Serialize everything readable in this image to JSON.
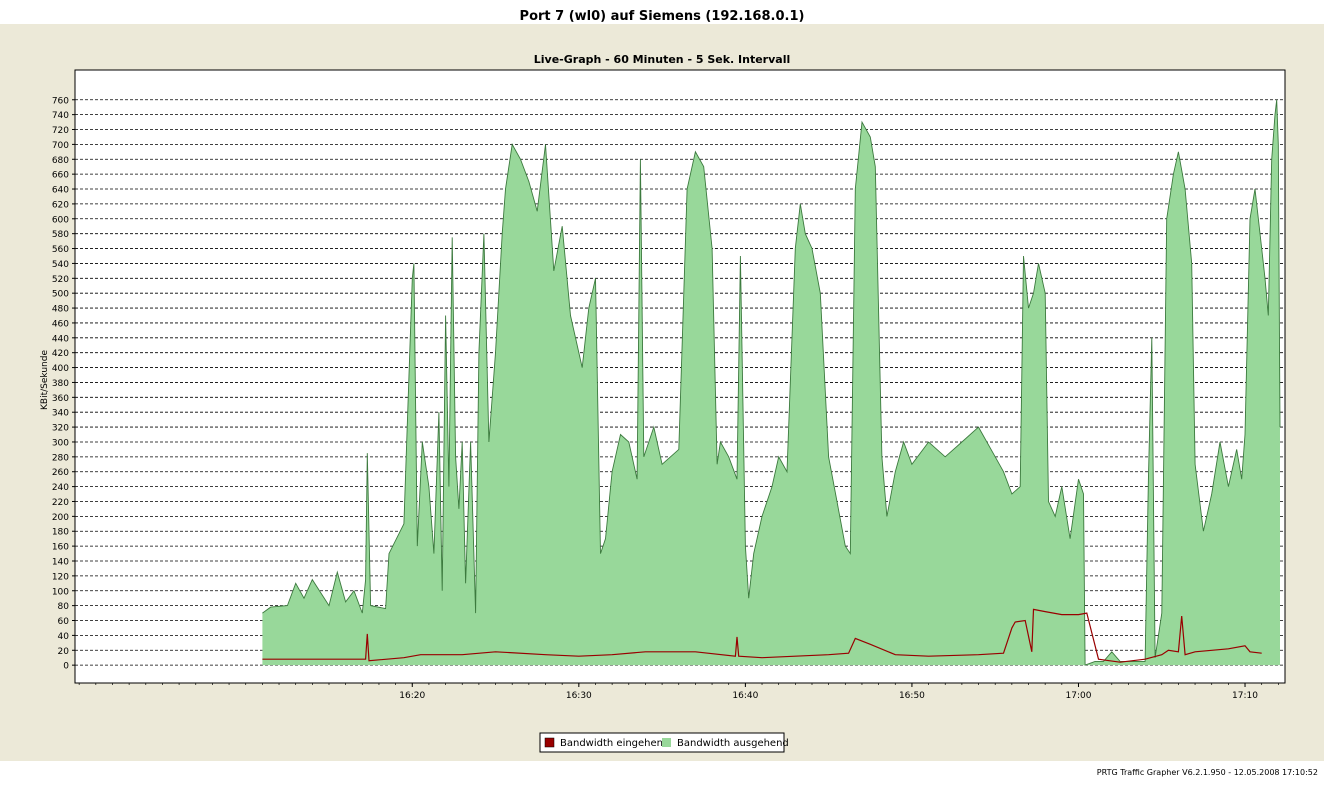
{
  "window_title": "Port 7 (wl0) auf Siemens (192.168.0.1)",
  "footer": "PRTG Traffic Grapher V6.2.1.950  -  12.05.2008 17:10:52",
  "colors": {
    "incoming": "#990000",
    "outgoing_fill": "#98d89a",
    "outgoing_stroke": "#3c7a3e",
    "panel_bg": "#ece9d8"
  },
  "chart_data": {
    "type": "area",
    "title": "Live-Graph - 60 Minuten - 5 Sek. Intervall",
    "ylabel": "KBit/Sekunde",
    "xlabel": "",
    "ylim": [
      -24,
      800
    ],
    "yticks": [
      0,
      20,
      40,
      60,
      80,
      100,
      120,
      140,
      160,
      180,
      200,
      220,
      240,
      260,
      280,
      300,
      320,
      340,
      360,
      380,
      400,
      420,
      440,
      460,
      480,
      500,
      520,
      540,
      560,
      580,
      600,
      620,
      640,
      660,
      680,
      700,
      720,
      740,
      760
    ],
    "xrange_minutes": [
      0,
      60
    ],
    "xticks": [
      {
        "label": "16:20",
        "minute": 9.0
      },
      {
        "label": "16:30",
        "minute": 19.0
      },
      {
        "label": "16:40",
        "minute": 29.0
      },
      {
        "label": "16:50",
        "minute": 39.0
      },
      {
        "label": "17:00",
        "minute": 49.0
      },
      {
        "label": "17:10",
        "minute": 59.0
      }
    ],
    "grid": "horizontal-dashed",
    "legend_position": "bottom-center",
    "series": [
      {
        "name": "Bandwidth eingehend",
        "color": "#990000",
        "points": [
          [
            0.0,
            8
          ],
          [
            2.5,
            8
          ],
          [
            6.2,
            8
          ],
          [
            6.3,
            42
          ],
          [
            6.4,
            6
          ],
          [
            8.5,
            10
          ],
          [
            9.5,
            14
          ],
          [
            12,
            14
          ],
          [
            14,
            18
          ],
          [
            17,
            14
          ],
          [
            19,
            12
          ],
          [
            21,
            14
          ],
          [
            23,
            18
          ],
          [
            26,
            18
          ],
          [
            28.4,
            12
          ],
          [
            28.5,
            38
          ],
          [
            28.6,
            12
          ],
          [
            30,
            10
          ],
          [
            32,
            12
          ],
          [
            34,
            14
          ],
          [
            35.2,
            16
          ],
          [
            35.6,
            36
          ],
          [
            36.5,
            28
          ],
          [
            38,
            14
          ],
          [
            40,
            12
          ],
          [
            43,
            14
          ],
          [
            44.5,
            16
          ],
          [
            45.0,
            50
          ],
          [
            45.2,
            58
          ],
          [
            45.8,
            60
          ],
          [
            46.2,
            18
          ],
          [
            46.3,
            75
          ],
          [
            47.0,
            72
          ],
          [
            48.0,
            68
          ],
          [
            49.0,
            68
          ],
          [
            49.5,
            70
          ],
          [
            50.2,
            8
          ],
          [
            51.5,
            4
          ],
          [
            53.0,
            8
          ],
          [
            54.0,
            14
          ],
          [
            54.4,
            20
          ],
          [
            55.0,
            18
          ],
          [
            55.2,
            66
          ],
          [
            55.4,
            14
          ],
          [
            56,
            18
          ],
          [
            58,
            22
          ],
          [
            59.0,
            26
          ],
          [
            59.3,
            18
          ],
          [
            60,
            16
          ]
        ]
      },
      {
        "name": "Bandwidth ausgehend",
        "color": "#98d89a",
        "points": [
          [
            0.0,
            70
          ],
          [
            0.5,
            78
          ],
          [
            1.5,
            80
          ],
          [
            2.0,
            110
          ],
          [
            2.5,
            90
          ],
          [
            3.0,
            115
          ],
          [
            4.0,
            80
          ],
          [
            4.5,
            125
          ],
          [
            5.0,
            85
          ],
          [
            5.5,
            100
          ],
          [
            6.0,
            70
          ],
          [
            6.2,
            115
          ],
          [
            6.3,
            285
          ],
          [
            6.5,
            80
          ],
          [
            7.4,
            76
          ],
          [
            7.6,
            150
          ],
          [
            8.5,
            190
          ],
          [
            9.0,
            520
          ],
          [
            9.1,
            540
          ],
          [
            9.3,
            160
          ],
          [
            9.6,
            300
          ],
          [
            10.0,
            240
          ],
          [
            10.3,
            150
          ],
          [
            10.6,
            340
          ],
          [
            10.8,
            100
          ],
          [
            11.0,
            470
          ],
          [
            11.2,
            240
          ],
          [
            11.4,
            575
          ],
          [
            11.6,
            280
          ],
          [
            11.8,
            210
          ],
          [
            12.0,
            300
          ],
          [
            12.2,
            110
          ],
          [
            12.5,
            300
          ],
          [
            12.8,
            70
          ],
          [
            13.0,
            420
          ],
          [
            13.3,
            580
          ],
          [
            13.6,
            300
          ],
          [
            14.0,
            420
          ],
          [
            14.4,
            580
          ],
          [
            14.6,
            640
          ],
          [
            15.0,
            700
          ],
          [
            15.5,
            680
          ],
          [
            16.0,
            650
          ],
          [
            16.5,
            610
          ],
          [
            17.0,
            700
          ],
          [
            17.5,
            530
          ],
          [
            18.0,
            590
          ],
          [
            18.5,
            470
          ],
          [
            19.2,
            400
          ],
          [
            19.6,
            480
          ],
          [
            20.0,
            520
          ],
          [
            20.3,
            150
          ],
          [
            20.6,
            170
          ],
          [
            21.0,
            260
          ],
          [
            21.5,
            310
          ],
          [
            22.0,
            300
          ],
          [
            22.5,
            250
          ],
          [
            22.7,
            680
          ],
          [
            22.9,
            280
          ],
          [
            23.2,
            300
          ],
          [
            23.5,
            320
          ],
          [
            24.0,
            270
          ],
          [
            25.0,
            290
          ],
          [
            25.5,
            640
          ],
          [
            26.0,
            690
          ],
          [
            26.5,
            670
          ],
          [
            27.0,
            560
          ],
          [
            27.3,
            270
          ],
          [
            27.5,
            300
          ],
          [
            28.0,
            280
          ],
          [
            28.5,
            250
          ],
          [
            28.7,
            550
          ],
          [
            29.0,
            160
          ],
          [
            29.2,
            90
          ],
          [
            29.5,
            150
          ],
          [
            30.0,
            200
          ],
          [
            30.6,
            240
          ],
          [
            31.0,
            280
          ],
          [
            31.5,
            260
          ],
          [
            32.0,
            560
          ],
          [
            32.3,
            620
          ],
          [
            32.6,
            580
          ],
          [
            33.0,
            560
          ],
          [
            33.5,
            500
          ],
          [
            34.0,
            280
          ],
          [
            34.5,
            220
          ],
          [
            35.0,
            160
          ],
          [
            35.3,
            150
          ],
          [
            35.6,
            640
          ],
          [
            36.0,
            730
          ],
          [
            36.5,
            710
          ],
          [
            36.8,
            670
          ],
          [
            37.2,
            280
          ],
          [
            37.5,
            200
          ],
          [
            38.0,
            260
          ],
          [
            38.5,
            300
          ],
          [
            39.0,
            270
          ],
          [
            40.0,
            300
          ],
          [
            41.0,
            280
          ],
          [
            42.0,
            300
          ],
          [
            43.0,
            320
          ],
          [
            44.0,
            280
          ],
          [
            44.5,
            260
          ],
          [
            45.0,
            230
          ],
          [
            45.5,
            240
          ],
          [
            45.7,
            550
          ],
          [
            46.0,
            480
          ],
          [
            46.3,
            500
          ],
          [
            46.6,
            540
          ],
          [
            47.0,
            500
          ],
          [
            47.2,
            220
          ],
          [
            47.6,
            200
          ],
          [
            48.0,
            240
          ],
          [
            48.5,
            170
          ],
          [
            49.0,
            250
          ],
          [
            49.3,
            230
          ],
          [
            49.4,
            0
          ],
          [
            50.0,
            5
          ],
          [
            50.5,
            5
          ],
          [
            51.0,
            18
          ],
          [
            51.5,
            5
          ],
          [
            53.0,
            5
          ],
          [
            53.2,
            250
          ],
          [
            53.4,
            440
          ],
          [
            53.6,
            10
          ],
          [
            54.0,
            70
          ],
          [
            54.3,
            600
          ],
          [
            54.7,
            660
          ],
          [
            55.0,
            690
          ],
          [
            55.4,
            640
          ],
          [
            55.8,
            540
          ],
          [
            56.0,
            270
          ],
          [
            56.5,
            180
          ],
          [
            57.0,
            230
          ],
          [
            57.5,
            300
          ],
          [
            58.0,
            240
          ],
          [
            58.5,
            290
          ],
          [
            58.8,
            250
          ],
          [
            59.0,
            310
          ],
          [
            59.3,
            600
          ],
          [
            59.6,
            640
          ],
          [
            60.0,
            560
          ],
          [
            60.2,
            520
          ],
          [
            60.4,
            470
          ],
          [
            60.6,
            680
          ],
          [
            60.8,
            740
          ],
          [
            60.9,
            760
          ],
          [
            61.0,
            700
          ],
          [
            61.1,
            320
          ]
        ]
      }
    ]
  }
}
